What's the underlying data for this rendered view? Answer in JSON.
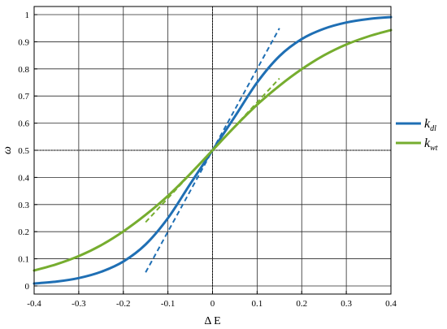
{
  "chart_data": {
    "type": "line",
    "xlabel": "Δ E",
    "ylabel": "ω",
    "xlim": [
      -0.4,
      0.4
    ],
    "ylim": [
      -0.03,
      1.03
    ],
    "x_ticks": [
      -0.4,
      -0.3,
      -0.2,
      -0.1,
      0,
      0.1,
      0.2,
      0.3,
      0.4
    ],
    "x_tick_labels": [
      "-0.4",
      "-0.3",
      "-0.2",
      "-0.1",
      "0",
      "0.1",
      "0.2",
      "0.3",
      "0.4"
    ],
    "y_ticks": [
      0,
      0.1,
      0.2,
      0.3,
      0.4,
      0.5,
      0.6,
      0.7,
      0.8,
      0.9,
      1
    ],
    "y_tick_labels": [
      "0",
      "0.1",
      "0.2",
      "0.3",
      "0.4",
      "0.5",
      "0.6",
      "0.7",
      "0.8",
      "0.9",
      "1"
    ],
    "grid": true,
    "legend_position": "right",
    "reference_lines": [
      {
        "orientation": "vertical",
        "value": 0,
        "style": "dotted"
      },
      {
        "orientation": "horizontal",
        "value": 0.5,
        "style": "dotted"
      }
    ],
    "series": [
      {
        "name": "k_dl",
        "name_main": "k",
        "name_sub": "dl",
        "color": "#1f6fb4",
        "x": [
          -0.4,
          -0.35,
          -0.3,
          -0.25,
          -0.2,
          -0.15,
          -0.1,
          -0.05,
          0,
          0.05,
          0.1,
          0.15,
          0.2,
          0.25,
          0.3,
          0.35,
          0.4
        ],
        "values": [
          0.009,
          0.016,
          0.029,
          0.052,
          0.09,
          0.153,
          0.25,
          0.376,
          0.5,
          0.624,
          0.75,
          0.847,
          0.91,
          0.948,
          0.971,
          0.984,
          0.991
        ]
      },
      {
        "name": "k_wt",
        "name_main": "k",
        "name_sub": "wt",
        "color": "#76ad2f",
        "x": [
          -0.4,
          -0.35,
          -0.3,
          -0.25,
          -0.2,
          -0.15,
          -0.1,
          -0.05,
          0,
          0.05,
          0.1,
          0.15,
          0.2,
          0.25,
          0.3,
          0.35,
          0.4
        ],
        "values": [
          0.057,
          0.08,
          0.11,
          0.15,
          0.201,
          0.262,
          0.332,
          0.413,
          0.5,
          0.587,
          0.668,
          0.738,
          0.799,
          0.85,
          0.89,
          0.92,
          0.943
        ]
      }
    ],
    "tangent_lines": [
      {
        "series": "k_dl",
        "color": "#1f6fb4",
        "x": [
          -0.15,
          0.15
        ],
        "values": [
          0.05,
          0.95
        ],
        "style": "dashed"
      },
      {
        "series": "k_wt",
        "color": "#76ad2f",
        "x": [
          -0.15,
          0.15
        ],
        "values": [
          0.235,
          0.765
        ],
        "style": "dashed"
      }
    ]
  }
}
